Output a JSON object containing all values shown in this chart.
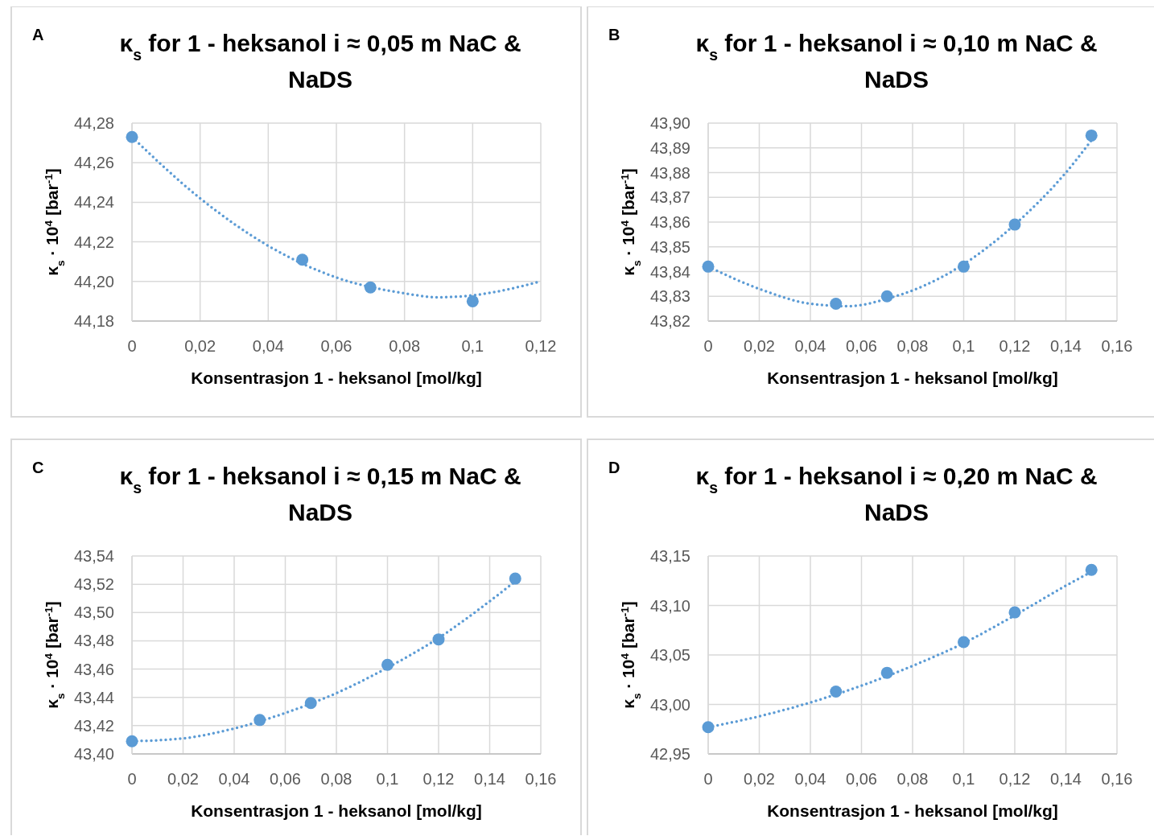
{
  "chart_data": [
    {
      "type": "scatter",
      "title": "κ$_{s}$ for 1 - heksanol i ≈ 0,05 m NaC & NaDS",
      "xlabel": "Konsentrasjon 1 - heksanol [mol/kg]",
      "ylabel": "κ$_{s}$ · 10$^{4}$ [bar$^{-1}$]",
      "annotations": [
        "A"
      ],
      "xlim": [
        0,
        0.12
      ],
      "xticks": [
        {
          "value": 0,
          "label": "0"
        },
        {
          "value": 0.02,
          "label": "0,02"
        },
        {
          "value": 0.04,
          "label": "0,04"
        },
        {
          "value": 0.06,
          "label": "0,06"
        },
        {
          "value": 0.08,
          "label": "0,08"
        },
        {
          "value": 0.1,
          "label": "0,1"
        },
        {
          "value": 0.12,
          "label": "0,12"
        }
      ],
      "ylim": [
        44.18,
        44.28
      ],
      "yticks": [
        {
          "value": 44.18,
          "label": "44,18"
        },
        {
          "value": 44.2,
          "label": "44,20"
        },
        {
          "value": 44.22,
          "label": "44,22"
        },
        {
          "value": 44.24,
          "label": "44,24"
        },
        {
          "value": 44.26,
          "label": "44,26"
        },
        {
          "value": 44.28,
          "label": "44,28"
        }
      ],
      "grid": true,
      "series": [
        {
          "type": "line",
          "color": "#5b9bd5",
          "line_style": "dotted",
          "x": [
            0,
            0.02,
            0.04,
            0.06,
            0.08,
            0.09,
            0.1,
            0.12
          ],
          "values": [
            44.273,
            44.242,
            44.218,
            44.202,
            44.194,
            44.192,
            44.193,
            44.2
          ]
        },
        {
          "type": "scatter",
          "color": "#5b9bd5",
          "marker": "circle",
          "x": [
            0,
            0.05,
            0.07,
            0.1
          ],
          "values": [
            44.273,
            44.211,
            44.197,
            44.19
          ]
        }
      ]
    },
    {
      "type": "scatter",
      "title": "κ$_{s}$ for 1 - heksanol i ≈ 0,10 m NaC & NaDS",
      "xlabel": "Konsentrasjon 1 - heksanol [mol/kg]",
      "ylabel": "κ$_{s}$ · 10$^{4}$ [bar$^{-1}$]",
      "annotations": [
        "B"
      ],
      "xlim": [
        0,
        0.16
      ],
      "xticks": [
        {
          "value": 0,
          "label": "0"
        },
        {
          "value": 0.02,
          "label": "0,02"
        },
        {
          "value": 0.04,
          "label": "0,04"
        },
        {
          "value": 0.06,
          "label": "0,06"
        },
        {
          "value": 0.08,
          "label": "0,08"
        },
        {
          "value": 0.1,
          "label": "0,1"
        },
        {
          "value": 0.12,
          "label": "0,12"
        },
        {
          "value": 0.14,
          "label": "0,14"
        },
        {
          "value": 0.16,
          "label": "0,16"
        }
      ],
      "ylim": [
        43.82,
        43.9
      ],
      "yticks": [
        {
          "value": 43.82,
          "label": "43,82"
        },
        {
          "value": 43.83,
          "label": "43,83"
        },
        {
          "value": 43.84,
          "label": "43,84"
        },
        {
          "value": 43.85,
          "label": "43,85"
        },
        {
          "value": 43.86,
          "label": "43,86"
        },
        {
          "value": 43.87,
          "label": "43,87"
        },
        {
          "value": 43.88,
          "label": "43,88"
        },
        {
          "value": 43.89,
          "label": "43,89"
        },
        {
          "value": 43.9,
          "label": "43,90"
        }
      ],
      "grid": true,
      "series": [
        {
          "type": "line",
          "color": "#5b9bd5",
          "line_style": "dotted",
          "x": [
            0,
            0.02,
            0.04,
            0.055,
            0.07,
            0.09,
            0.1,
            0.12,
            0.14,
            0.15
          ],
          "values": [
            43.842,
            43.833,
            43.827,
            43.826,
            43.829,
            43.837,
            43.843,
            43.859,
            43.88,
            43.893
          ]
        },
        {
          "type": "scatter",
          "color": "#5b9bd5",
          "marker": "circle",
          "x": [
            0,
            0.05,
            0.07,
            0.1,
            0.12,
            0.15
          ],
          "values": [
            43.842,
            43.827,
            43.83,
            43.842,
            43.859,
            43.895
          ]
        }
      ]
    },
    {
      "type": "scatter",
      "title": "κ$_{s}$ for 1 - heksanol i ≈ 0,15 m NaC & NaDS",
      "xlabel": "Konsentrasjon 1 - heksanol [mol/kg]",
      "ylabel": "κ$_{s}$ · 10$^{4}$ [bar$^{-1}$]",
      "annotations": [
        "C"
      ],
      "xlim": [
        0,
        0.16
      ],
      "xticks": [
        {
          "value": 0,
          "label": "0"
        },
        {
          "value": 0.02,
          "label": "0,02"
        },
        {
          "value": 0.04,
          "label": "0,04"
        },
        {
          "value": 0.06,
          "label": "0,06"
        },
        {
          "value": 0.08,
          "label": "0,08"
        },
        {
          "value": 0.1,
          "label": "0,1"
        },
        {
          "value": 0.12,
          "label": "0,12"
        },
        {
          "value": 0.14,
          "label": "0,14"
        },
        {
          "value": 0.16,
          "label": "0,16"
        }
      ],
      "ylim": [
        43.4,
        43.54
      ],
      "yticks": [
        {
          "value": 43.4,
          "label": "43,40"
        },
        {
          "value": 43.42,
          "label": "43,42"
        },
        {
          "value": 43.44,
          "label": "43,44"
        },
        {
          "value": 43.46,
          "label": "43,46"
        },
        {
          "value": 43.48,
          "label": "43,48"
        },
        {
          "value": 43.5,
          "label": "43,50"
        },
        {
          "value": 43.52,
          "label": "43,52"
        },
        {
          "value": 43.54,
          "label": "43,54"
        }
      ],
      "grid": true,
      "series": [
        {
          "type": "line",
          "color": "#5b9bd5",
          "line_style": "dotted",
          "x": [
            0,
            0.02,
            0.04,
            0.06,
            0.08,
            0.1,
            0.12,
            0.14,
            0.15
          ],
          "values": [
            43.409,
            43.411,
            43.418,
            43.429,
            43.443,
            43.461,
            43.482,
            43.508,
            43.522
          ]
        },
        {
          "type": "scatter",
          "color": "#5b9bd5",
          "marker": "circle",
          "x": [
            0,
            0.05,
            0.07,
            0.1,
            0.12,
            0.15
          ],
          "values": [
            43.409,
            43.424,
            43.436,
            43.463,
            43.481,
            43.524
          ]
        }
      ]
    },
    {
      "type": "scatter",
      "title": "κ$_{s}$ for 1 - heksanol i ≈ 0,20 m NaC & NaDS",
      "xlabel": "Konsentrasjon 1 - heksanol [mol/kg]",
      "ylabel": "κ$_{s}$ · 10$^{4}$ [bar$^{-1}$]",
      "annotations": [
        "D"
      ],
      "xlim": [
        0,
        0.16
      ],
      "xticks": [
        {
          "value": 0,
          "label": "0"
        },
        {
          "value": 0.02,
          "label": "0,02"
        },
        {
          "value": 0.04,
          "label": "0,04"
        },
        {
          "value": 0.06,
          "label": "0,06"
        },
        {
          "value": 0.08,
          "label": "0,08"
        },
        {
          "value": 0.1,
          "label": "0,1"
        },
        {
          "value": 0.12,
          "label": "0,12"
        },
        {
          "value": 0.14,
          "label": "0,14"
        },
        {
          "value": 0.16,
          "label": "0,16"
        }
      ],
      "ylim": [
        42.95,
        43.15
      ],
      "yticks": [
        {
          "value": 42.95,
          "label": "42,95"
        },
        {
          "value": 43,
          "label": "43,00"
        },
        {
          "value": 43.05,
          "label": "43,05"
        },
        {
          "value": 43.1,
          "label": "43,10"
        },
        {
          "value": 43.15,
          "label": "43,15"
        }
      ],
      "grid": true,
      "series": [
        {
          "type": "line",
          "color": "#5b9bd5",
          "line_style": "dotted",
          "x": [
            0,
            0.02,
            0.04,
            0.06,
            0.08,
            0.1,
            0.12,
            0.14,
            0.15
          ],
          "values": [
            42.977,
            42.988,
            43.002,
            43.019,
            43.039,
            43.062,
            43.09,
            43.12,
            43.134
          ]
        },
        {
          "type": "scatter",
          "color": "#5b9bd5",
          "marker": "circle",
          "x": [
            0,
            0.05,
            0.07,
            0.1,
            0.12,
            0.15
          ],
          "values": [
            42.977,
            43.013,
            43.032,
            43.063,
            43.093,
            43.136
          ]
        }
      ]
    }
  ]
}
